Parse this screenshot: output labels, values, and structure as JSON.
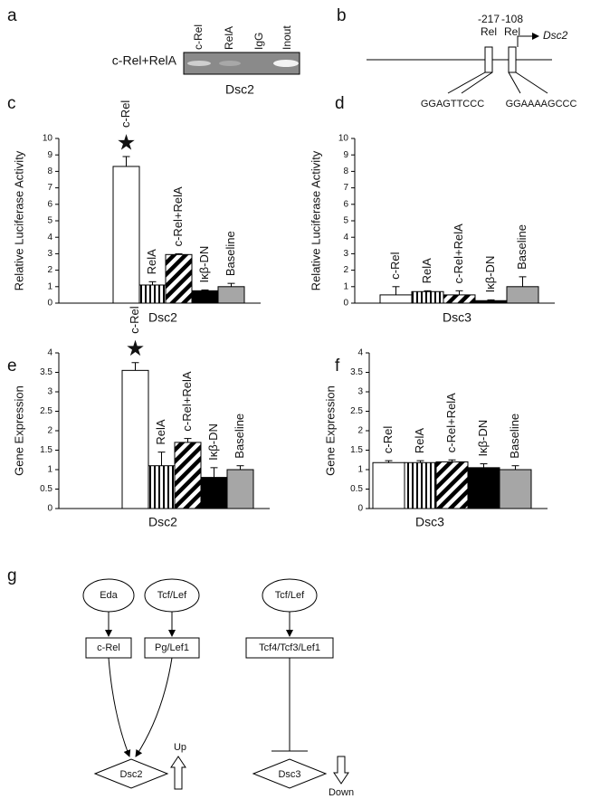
{
  "panel_labels": [
    "a",
    "b",
    "c",
    "d",
    "e",
    "f",
    "g"
  ],
  "gel": {
    "lanes": [
      "c-Rel",
      "RelA",
      "IgG",
      "Inout"
    ],
    "row_label": "c-Rel+RelA",
    "caption": "Dsc2"
  },
  "promoter": {
    "sites": [
      {
        "position": "-217",
        "factor": "Rel",
        "sequence": "GGAGTTCCC"
      },
      {
        "position": "-108",
        "factor": "Rel",
        "sequence": "GGAAAAGCCC"
      }
    ],
    "gene": "Dsc2"
  },
  "chart_data": [
    {
      "type": "bar",
      "ylabel": "Relative Luciferase Activity",
      "xlabel": "Dsc2",
      "categories": [
        "c-Rel",
        "RelA",
        "c-Rel+RelA",
        "Iκβ-DN",
        "Baseline"
      ],
      "values": [
        8.3,
        1.1,
        2.95,
        0.75,
        1.0
      ],
      "errors": [
        0.6,
        0.2,
        0.05,
        0.05,
        0.2
      ],
      "significance_marks": [
        "★",
        null,
        null,
        null,
        null
      ],
      "fills": [
        "white",
        "vertical-stripes",
        "diagonal-stripes",
        "black",
        "gray"
      ],
      "ylim": [
        0,
        10
      ],
      "yticks": [
        0,
        1,
        2,
        3,
        4,
        5,
        6,
        7,
        8,
        9,
        10
      ]
    },
    {
      "type": "bar",
      "ylabel": "Relative Luciferase Activity",
      "xlabel": "Dsc3",
      "categories": [
        "c-Rel",
        "RelA",
        "c-Rel+RelA",
        "Iκβ-DN",
        "Baseline"
      ],
      "values": [
        0.5,
        0.7,
        0.5,
        0.15,
        1.0
      ],
      "errors": [
        0.5,
        0.05,
        0.25,
        0.05,
        0.6
      ],
      "significance_marks": [
        null,
        null,
        null,
        null,
        null
      ],
      "fills": [
        "white",
        "vertical-stripes",
        "diagonal-stripes",
        "black",
        "gray"
      ],
      "ylim": [
        0,
        10
      ],
      "yticks": [
        0,
        1,
        2,
        3,
        4,
        5,
        6,
        7,
        8,
        9,
        10
      ]
    },
    {
      "type": "bar",
      "ylabel": "Gene Expression",
      "xlabel": "Dsc2",
      "categories": [
        "c-Rel",
        "RelA",
        "c-Rel+RelA",
        "Iκβ-DN",
        "Baseline"
      ],
      "values": [
        3.55,
        1.1,
        1.7,
        0.8,
        1.0
      ],
      "errors": [
        0.2,
        0.35,
        0.1,
        0.25,
        0.1
      ],
      "significance_marks": [
        "★",
        null,
        null,
        null,
        null
      ],
      "fills": [
        "white",
        "vertical-stripes",
        "diagonal-stripes",
        "black",
        "gray"
      ],
      "ylim": [
        0,
        4
      ],
      "yticks": [
        0,
        0.5,
        1,
        1.5,
        2,
        2.5,
        3,
        3.5,
        4
      ]
    },
    {
      "type": "bar",
      "ylabel": "Gene Expression",
      "xlabel": "Dsc3",
      "categories": [
        "c-Rel",
        "RelA",
        "c-Rel+RelA",
        "Iκβ-DN",
        "Baseline"
      ],
      "values": [
        1.18,
        1.18,
        1.2,
        1.05,
        1.0
      ],
      "errors": [
        0.05,
        0.05,
        0.05,
        0.1,
        0.1
      ],
      "significance_marks": [
        null,
        null,
        null,
        null,
        null
      ],
      "fills": [
        "white",
        "vertical-stripes",
        "diagonal-stripes",
        "black",
        "gray"
      ],
      "ylim": [
        0,
        4
      ],
      "yticks": [
        0,
        0.5,
        1,
        1.5,
        2,
        2.5,
        3,
        3.5,
        4
      ]
    }
  ],
  "diagram": {
    "nodes": [
      "Eda",
      "Tcf/Lef",
      "Tcf/Lef",
      "c-Rel",
      "Pg/Lef1",
      "Tcf4/Tcf3/Lef1",
      "Dsc2",
      "Dsc3"
    ],
    "arrows": [
      "Up",
      "Down"
    ]
  }
}
